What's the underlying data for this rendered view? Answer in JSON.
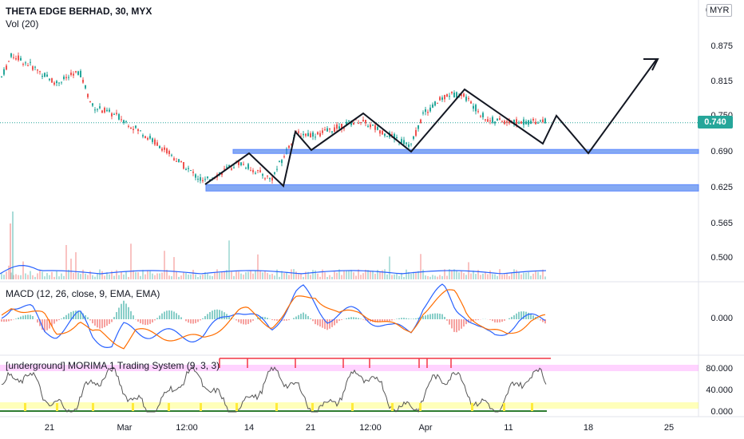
{
  "header": {
    "symbol_title": "THETA EDGE BERHAD, 30, MYX",
    "volume_label": "Vol (20)",
    "currency": "MYR",
    "currency_prefix": "0"
  },
  "price_axis": {
    "ticks": [
      "0.875",
      "0.815",
      "0.750",
      "0.690",
      "0.625",
      "0.565",
      "0.500"
    ],
    "last_price": "0.740"
  },
  "macd": {
    "title": "MACD (12, 26, close, 9, EMA, EMA)",
    "ticks": [
      "0.000"
    ]
  },
  "morima": {
    "title": "[underground] MORIMA 1 Trading System (9, 3, 3)",
    "ticks": [
      "80.000",
      "40.000",
      "0.000"
    ]
  },
  "time_axis": {
    "ticks": [
      "21",
      "Mar",
      "12:00",
      "14",
      "21",
      "12:00",
      "Apr",
      "11",
      "18",
      "25"
    ]
  },
  "colors": {
    "up": "#26a69a",
    "down": "#ef5350",
    "macd_line": "#2962ff",
    "signal_line": "#ff6d00",
    "zone": "#5b8def",
    "drawing": "#131722",
    "overbought": "#f23645"
  },
  "chart_data": {
    "type": "candlestick",
    "price_levels": [
      0.875,
      0.815,
      0.75,
      0.69,
      0.625,
      0.565,
      0.5
    ],
    "last_price": 0.74,
    "support_zones": [
      0.69,
      0.625
    ],
    "indicator_levels": [
      80,
      40,
      0
    ]
  }
}
